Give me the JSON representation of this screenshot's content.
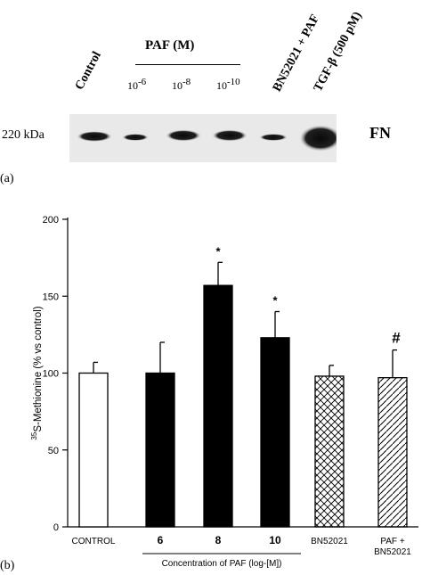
{
  "panel_a": {
    "label": "(a)",
    "lanes": {
      "control": "Control",
      "paf": "PAF (M)",
      "conc1_base": "10",
      "conc1_exp": "-6",
      "conc2_base": "10",
      "conc2_exp": "-8",
      "conc3_base": "10",
      "conc3_exp": "-10",
      "bn": "BN52021 + PAF",
      "tgf": "TGF-β (500 pM)"
    },
    "marker": "220 kDa",
    "protein": "FN"
  },
  "panel_b": {
    "label": "(b)"
  },
  "chart_data": {
    "type": "bar",
    "categories": [
      "CONTROL",
      "6",
      "8",
      "10",
      "BN52021",
      "PAF + BN52021"
    ],
    "values": [
      100,
      100,
      157,
      123,
      98,
      97
    ],
    "errors": [
      7,
      20,
      15,
      17,
      7,
      18
    ],
    "significance": [
      "",
      "",
      "*",
      "*",
      "",
      "#"
    ],
    "fills": [
      "white",
      "black",
      "black",
      "black",
      "crosshatch",
      "diagonal"
    ],
    "ylabel_super": "35",
    "ylabel": "S-Methionine (% vs control)",
    "xgroup_label": "Concentration of PAF (log-[M])",
    "ylim": [
      0,
      200
    ],
    "yticks": [
      0,
      50,
      100,
      150,
      200
    ]
  }
}
